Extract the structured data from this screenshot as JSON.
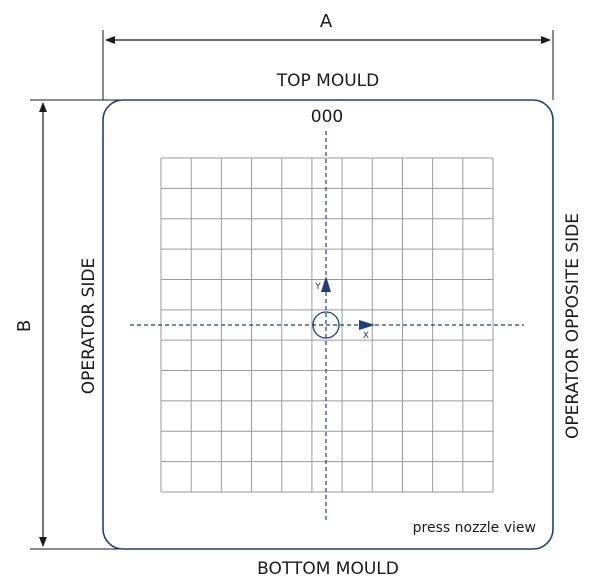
{
  "labels": {
    "dimension_a": "A",
    "dimension_b": "B",
    "top": "TOP MOULD",
    "bottom": "BOTTOM MOULD",
    "left": "OPERATOR SIDE",
    "right": "OPERATOR OPPOSITE SIDE",
    "code": "000",
    "view": "press nozzle view",
    "axis_x": "X",
    "axis_y": "Y"
  },
  "grid": {
    "columns": 11,
    "rows": 11
  },
  "colors": {
    "plate_border": "#1f3f7a",
    "axis": "#1f3f7a",
    "grid": "#9a9a9a",
    "dimension": "#1a1a1a"
  }
}
